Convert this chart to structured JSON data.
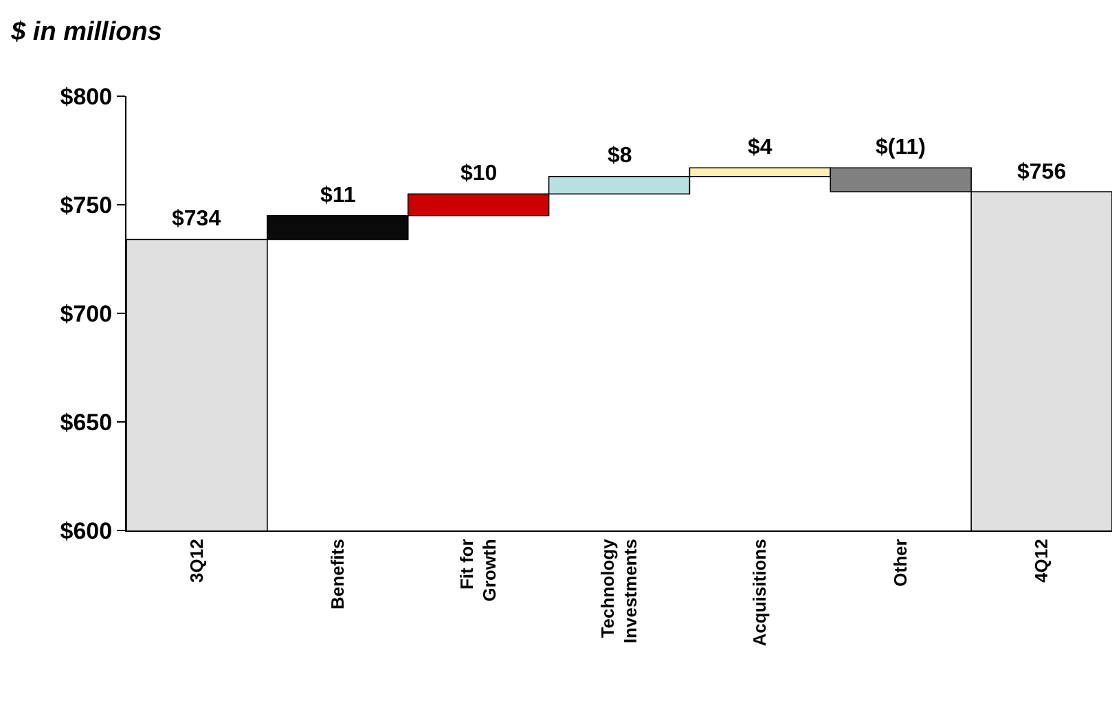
{
  "chart_data": {
    "type": "bar",
    "title": "$ in millions",
    "categories": [
      "3Q12",
      "Benefits",
      "Fit for Growth",
      "Technology Investments",
      "Acquisitions",
      "Other",
      "4Q12"
    ],
    "values": [
      734,
      11,
      10,
      8,
      4,
      -11,
      756
    ],
    "base": [
      0,
      734,
      745,
      755,
      763,
      767,
      0
    ],
    "colors": [
      "#e0e0e0",
      "#0a0a0a",
      "#cc0000",
      "#b7e1e1",
      "#fdf0b4",
      "#808080",
      "#e0e0e0"
    ],
    "value_labels": [
      "$734",
      "$11",
      "$10",
      "$8",
      "$4",
      "$(11)",
      "$756"
    ],
    "ylim": [
      600,
      800
    ],
    "yticks": [
      {
        "value": 600,
        "label": "$600"
      },
      {
        "value": 650,
        "label": "$650"
      },
      {
        "value": 700,
        "label": "$700"
      },
      {
        "value": 750,
        "label": "$750"
      },
      {
        "value": 800,
        "label": "$800"
      }
    ]
  }
}
